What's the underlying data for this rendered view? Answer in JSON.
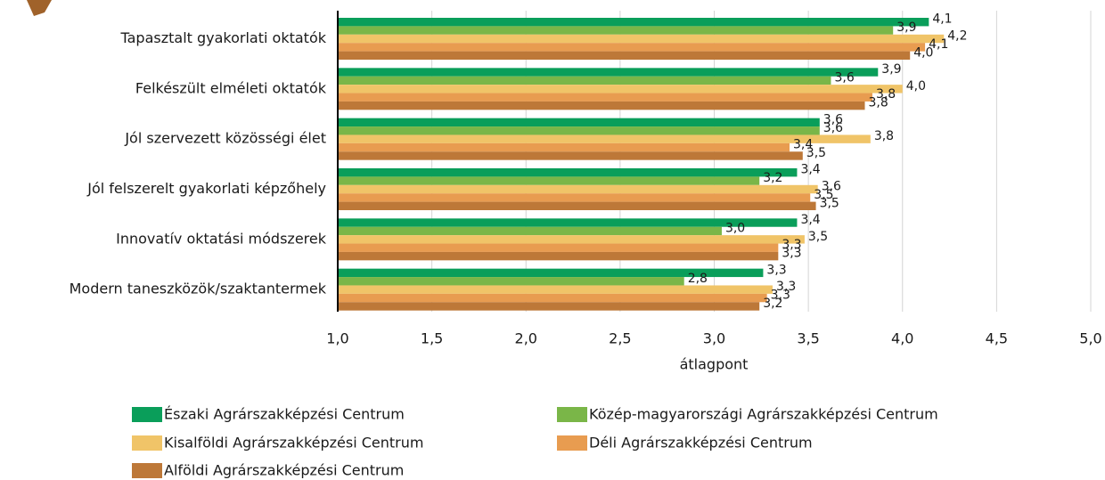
{
  "chart_data": {
    "type": "hbar",
    "categories": [
      "Tapasztalt gyakorlati oktatók",
      "Felkészült elméleti oktatók",
      "Jól szervezett közösségi élet",
      "Jól felszerelt gyakorlati képzőhely",
      "Innovatív oktatási módszerek",
      "Modern taneszközök/szaktantermek"
    ],
    "series": [
      {
        "name": "Északi Agrárszakképzési Centrum",
        "color": "#0a9e5a",
        "values": [
          4.14,
          3.87,
          3.56,
          3.44,
          3.44,
          3.26
        ],
        "value_labels": [
          "4,1",
          "3,9",
          "3,6",
          "3,4",
          "3,4",
          "3,3"
        ]
      },
      {
        "name": "Közép-magyarországi Agrárszakképzési Centrum",
        "color": "#7ab648",
        "values": [
          3.95,
          3.62,
          3.56,
          3.24,
          3.04,
          2.84
        ],
        "value_labels": [
          "3,9",
          "3,6",
          "3,6",
          "3,2",
          "3,0",
          "2,8"
        ]
      },
      {
        "name": "Kisalföldi Agrárszakképzési Centrum",
        "color": "#f0c468",
        "values": [
          4.22,
          4.0,
          3.83,
          3.55,
          3.48,
          3.31
        ],
        "value_labels": [
          "4,2",
          "4,0",
          "3,8",
          "3,6",
          "3,5",
          "3,3"
        ]
      },
      {
        "name": "Déli Agrárszakképzési Centrum",
        "color": "#e89c50",
        "values": [
          4.12,
          3.84,
          3.4,
          3.51,
          3.34,
          3.28
        ],
        "value_labels": [
          "4,1",
          "3,8",
          "3,4",
          "3,5",
          "3,3",
          "3,3"
        ]
      },
      {
        "name": "Alföldi Agrárszakképzési Centrum",
        "color": "#bd7838",
        "values": [
          4.04,
          3.8,
          3.47,
          3.54,
          3.34,
          3.24
        ],
        "value_labels": [
          "4,0",
          "3,8",
          "3,5",
          "3,5",
          "3,3",
          "3,2"
        ]
      }
    ],
    "xlabel": "átlagpont",
    "xlim": [
      1.0,
      5.0
    ],
    "xticks": [
      {
        "value": 1.0,
        "label": "1,0"
      },
      {
        "value": 1.5,
        "label": "1,5"
      },
      {
        "value": 2.0,
        "label": "2,0"
      },
      {
        "value": 2.5,
        "label": "2,5"
      },
      {
        "value": 3.0,
        "label": "3,0"
      },
      {
        "value": 3.5,
        "label": "3,5"
      },
      {
        "value": 4.0,
        "label": "4,0"
      },
      {
        "value": 4.5,
        "label": "4,5"
      },
      {
        "value": 5.0,
        "label": "5,0"
      }
    ],
    "grid": true,
    "legend": "bottom"
  }
}
